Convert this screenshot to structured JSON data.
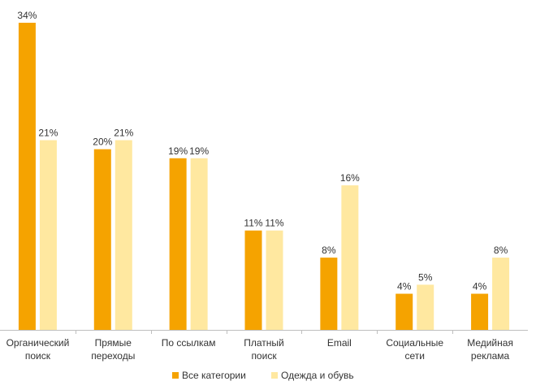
{
  "chart_data": {
    "type": "bar",
    "categories": [
      [
        "Органический",
        "поиск"
      ],
      [
        "Прямые",
        "переходы"
      ],
      [
        "По ссылкам"
      ],
      [
        "Платный",
        "поиск"
      ],
      [
        "Email"
      ],
      [
        "Социальные",
        "сети"
      ],
      [
        "Медийная",
        "реклама"
      ]
    ],
    "series": [
      {
        "name": "Все категории",
        "color": "#F5A300",
        "values": [
          34,
          20,
          19,
          11,
          8,
          4,
          4
        ]
      },
      {
        "name": "Одежда и обувь",
        "color": "#FFE8A0",
        "values": [
          21,
          21,
          19,
          11,
          16,
          5,
          8
        ]
      }
    ],
    "value_suffix": "%",
    "ylim": [
      0,
      34
    ],
    "grid": false,
    "legend": "bottom",
    "title": "",
    "xlabel": "",
    "ylabel": ""
  }
}
